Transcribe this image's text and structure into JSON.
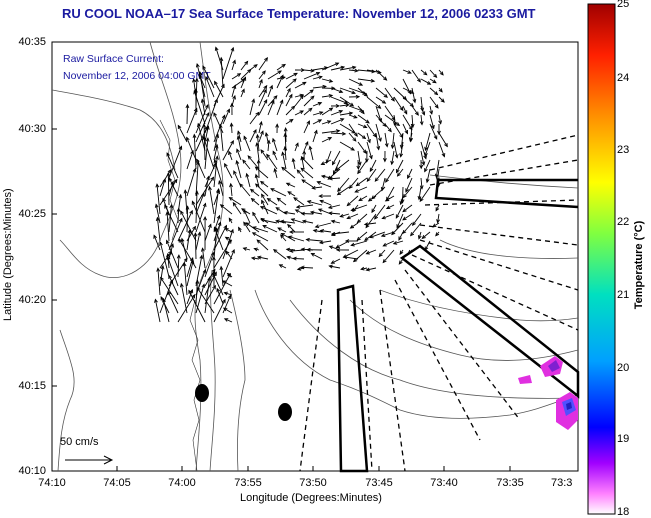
{
  "title": "RU COOL  NOAA–17  Sea Surface Temperature:  November 12, 2006 0233 GMT",
  "subtitle_line1": "Raw Surface Current:",
  "subtitle_line2": "November 12, 2006 04:00 GMT",
  "axes": {
    "xlabel": "Longitude (Degrees:Minutes)",
    "ylabel": "Latitude (Degrees:Minutes)",
    "xticks": [
      "74:10",
      "74:05",
      "74:00",
      "73:55",
      "73:50",
      "73:45",
      "73:40",
      "73:35",
      "73:3"
    ],
    "yticks": [
      "40:35",
      "40:30",
      "40:25",
      "40:20",
      "40:15",
      "40:10"
    ]
  },
  "colorbar": {
    "label": "Temperature (°C)",
    "ticks": [
      "25",
      "24",
      "23",
      "22",
      "21",
      "20",
      "19",
      "18"
    ],
    "min": 18,
    "max": 25
  },
  "scale_vector_label": "50 cm/s"
}
